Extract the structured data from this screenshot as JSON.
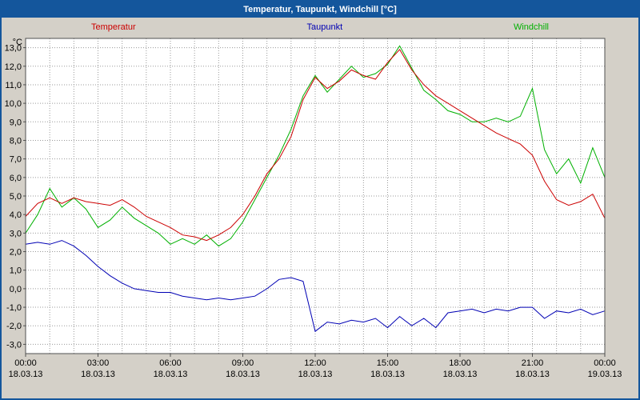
{
  "window": {
    "title": "Temperatur, Taupunkt, Windchill [°C]",
    "title_bar_color": "#14569c"
  },
  "legend": {
    "items": [
      {
        "label": "Temperatur",
        "color": "#cc0000"
      },
      {
        "label": "Taupunkt",
        "color": "#0000b4"
      },
      {
        "label": "Windchill",
        "color": "#00b000"
      }
    ]
  },
  "chart_data": {
    "type": "line",
    "title": "Temperatur, Taupunkt, Windchill [°C]",
    "xlabel": "",
    "ylabel": "°C",
    "ylim": [
      -3.5,
      13.5
    ],
    "y_tick_min": -3,
    "y_tick_max": 13,
    "y_tick_step": 1,
    "grid": "dotted, hourly vertical lines and 1°C horizontal lines",
    "legend_position": "top",
    "x_unit": "hours",
    "x": [
      0,
      0.5,
      1,
      1.5,
      2,
      2.5,
      3,
      3.5,
      4,
      4.5,
      5,
      5.5,
      6,
      6.5,
      7,
      7.5,
      8,
      8.5,
      9,
      9.5,
      10,
      10.5,
      11,
      11.5,
      12,
      12.5,
      13,
      13.5,
      14,
      14.5,
      15,
      15.5,
      16,
      16.5,
      17,
      17.5,
      18,
      18.5,
      19,
      19.5,
      20,
      20.5,
      21,
      21.5,
      22,
      22.5,
      23,
      23.5,
      24
    ],
    "series": [
      {
        "name": "Temperatur",
        "color": "#cc0000",
        "values": [
          3.9,
          4.6,
          4.9,
          4.6,
          4.9,
          4.7,
          4.6,
          4.5,
          4.8,
          4.4,
          3.9,
          3.6,
          3.3,
          2.9,
          2.8,
          2.6,
          2.9,
          3.3,
          4.0,
          5.0,
          6.2,
          7.0,
          8.2,
          10.2,
          11.4,
          10.8,
          11.2,
          11.8,
          11.5,
          11.3,
          12.2,
          12.9,
          11.8,
          11.0,
          10.4,
          10.0,
          9.6,
          9.2,
          8.8,
          8.4,
          8.1,
          7.8,
          7.2,
          5.8,
          4.8,
          4.5,
          4.7,
          5.1,
          3.8
        ]
      },
      {
        "name": "Taupunkt",
        "color": "#0000b4",
        "values": [
          2.4,
          2.5,
          2.4,
          2.6,
          2.3,
          1.8,
          1.2,
          0.7,
          0.3,
          0.0,
          -0.1,
          -0.2,
          -0.2,
          -0.4,
          -0.5,
          -0.6,
          -0.5,
          -0.6,
          -0.5,
          -0.4,
          0.0,
          0.5,
          0.6,
          0.4,
          -2.3,
          -1.8,
          -1.9,
          -1.7,
          -1.8,
          -1.6,
          -2.1,
          -1.5,
          -2.0,
          -1.6,
          -2.1,
          -1.3,
          -1.2,
          -1.1,
          -1.3,
          -1.1,
          -1.2,
          -1.0,
          -1.0,
          -1.6,
          -1.2,
          -1.3,
          -1.1,
          -1.4,
          -1.2
        ]
      },
      {
        "name": "Windchill",
        "color": "#00b000",
        "values": [
          3.0,
          4.0,
          5.4,
          4.4,
          4.9,
          4.3,
          3.3,
          3.7,
          4.4,
          3.8,
          3.4,
          3.0,
          2.4,
          2.7,
          2.4,
          2.9,
          2.3,
          2.7,
          3.6,
          4.8,
          6.0,
          7.2,
          8.6,
          10.4,
          11.5,
          10.6,
          11.3,
          12.0,
          11.4,
          11.6,
          12.1,
          13.1,
          11.9,
          10.7,
          10.2,
          9.6,
          9.4,
          9.0,
          9.0,
          9.2,
          9.0,
          9.3,
          10.8,
          7.5,
          6.2,
          7.0,
          5.7,
          7.6,
          6.0
        ]
      }
    ],
    "x_ticks": {
      "hours": [
        0,
        3,
        6,
        9,
        12,
        15,
        18,
        21,
        24
      ],
      "times": [
        "00:00",
        "03:00",
        "06:00",
        "09:00",
        "12:00",
        "15:00",
        "18:00",
        "21:00",
        "00:00"
      ],
      "dates": [
        "18.03.13",
        "18.03.13",
        "18.03.13",
        "18.03.13",
        "18.03.13",
        "18.03.13",
        "18.03.13",
        "18.03.13",
        "19.03.13"
      ]
    }
  }
}
